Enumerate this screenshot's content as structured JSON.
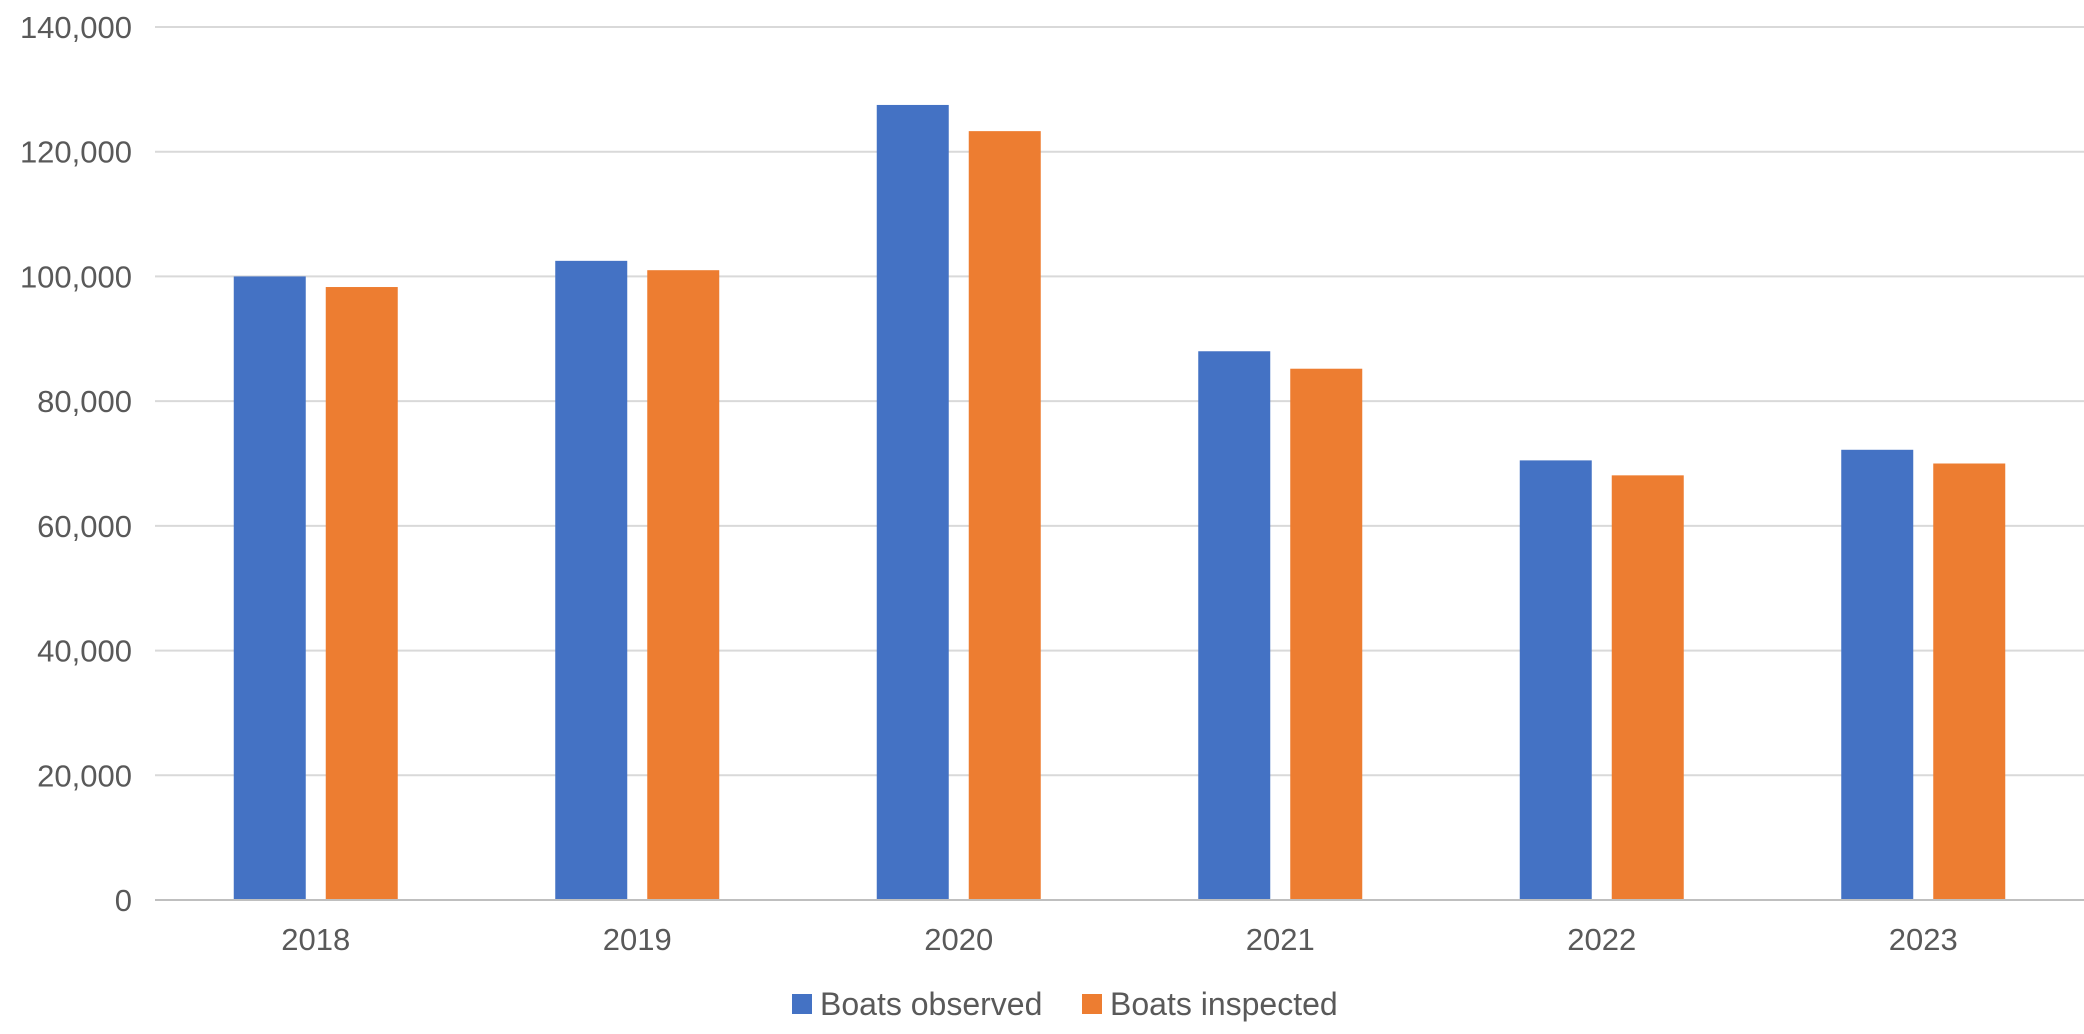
{
  "chart_data": {
    "type": "bar",
    "categories": [
      "2018",
      "2019",
      "2020",
      "2021",
      "2022",
      "2023"
    ],
    "series": [
      {
        "name": "Boats observed",
        "color": "#4472c4",
        "values": [
          100000,
          102500,
          127500,
          88000,
          70500,
          72200
        ]
      },
      {
        "name": "Boats inspected",
        "color": "#ed7d31",
        "values": [
          98300,
          101000,
          123300,
          85200,
          68100,
          70000
        ]
      }
    ],
    "ylim": [
      0,
      140000
    ],
    "yticks": [
      0,
      20000,
      40000,
      60000,
      80000,
      100000,
      120000,
      140000
    ],
    "ytick_labels": [
      "0",
      "20,000",
      "40,000",
      "60,000",
      "80,000",
      "100,000",
      "120,000",
      "140,000"
    ],
    "grid": true,
    "legend_position": "bottom-center",
    "title": "",
    "xlabel": "",
    "ylabel": ""
  }
}
